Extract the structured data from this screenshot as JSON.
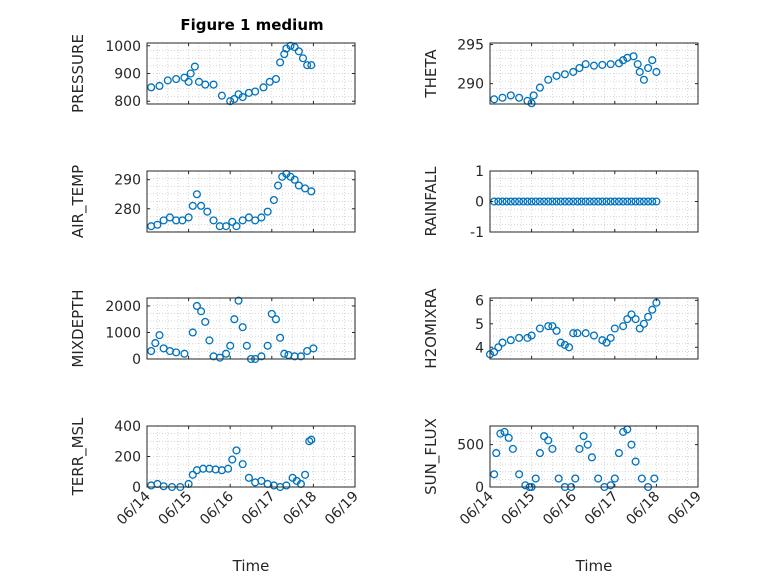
{
  "figure": {
    "title": "Figure 1 medium",
    "marker_color": "#0072bd",
    "axes_color": "#262626",
    "grid_color": "#c8c8c8"
  },
  "chart_data": [
    {
      "type": "scatter",
      "name": "pressure",
      "ylabel": "PRESSURE",
      "xlim": [
        "06/14",
        "06/19"
      ],
      "ylim": [
        790,
        1010
      ],
      "yticks": [
        800,
        900,
        1000
      ],
      "grid": true,
      "marker": "circle-open",
      "x": [
        14.1,
        14.3,
        14.5,
        14.7,
        14.9,
        15.0,
        15.05,
        15.15,
        15.25,
        15.4,
        15.6,
        15.8,
        16.0,
        16.1,
        16.2,
        16.3,
        16.45,
        16.6,
        16.8,
        16.95,
        17.1,
        17.2,
        17.3,
        17.35,
        17.45,
        17.55,
        17.65,
        17.75,
        17.85,
        17.95
      ],
      "y": [
        850,
        855,
        875,
        880,
        885,
        870,
        900,
        925,
        870,
        860,
        860,
        820,
        800,
        808,
        825,
        815,
        830,
        835,
        850,
        870,
        880,
        940,
        970,
        990,
        1000,
        995,
        980,
        955,
        930,
        930
      ]
    },
    {
      "type": "scatter",
      "name": "theta",
      "ylabel": "THETA",
      "xlim": [
        "06/14",
        "06/19"
      ],
      "ylim": [
        287.4,
        295.2
      ],
      "yticks": [
        290,
        295
      ],
      "grid": true,
      "marker": "circle-open",
      "x": [
        14.1,
        14.3,
        14.5,
        14.7,
        14.9,
        15.0,
        15.05,
        15.2,
        15.4,
        15.6,
        15.8,
        16.0,
        16.15,
        16.3,
        16.5,
        16.7,
        16.9,
        17.1,
        17.2,
        17.3,
        17.45,
        17.55,
        17.6,
        17.7,
        17.8,
        17.9,
        18.0
      ],
      "y": [
        288.0,
        288.2,
        288.5,
        288.2,
        287.8,
        287.5,
        288.5,
        289.5,
        290.5,
        291.0,
        291.2,
        291.5,
        292.0,
        292.5,
        292.3,
        292.4,
        292.5,
        292.6,
        293.0,
        293.3,
        293.5,
        292.5,
        291.5,
        290.5,
        292.0,
        293.0,
        291.5
      ]
    },
    {
      "type": "scatter",
      "name": "air_temp",
      "ylabel": "AIR_TEMP",
      "xlim": [
        "06/14",
        "06/19"
      ],
      "ylim": [
        272,
        293
      ],
      "yticks": [
        280,
        290
      ],
      "grid": true,
      "marker": "circle-open",
      "x": [
        14.1,
        14.25,
        14.4,
        14.55,
        14.7,
        14.85,
        15.0,
        15.1,
        15.2,
        15.3,
        15.45,
        15.6,
        15.75,
        15.9,
        16.05,
        16.15,
        16.3,
        16.45,
        16.6,
        16.75,
        16.9,
        17.05,
        17.15,
        17.25,
        17.35,
        17.45,
        17.55,
        17.65,
        17.8,
        17.95
      ],
      "y": [
        274,
        274.5,
        276,
        277,
        276,
        276,
        277,
        281,
        285,
        281,
        279,
        276,
        274,
        274,
        275.5,
        274,
        276,
        277,
        276,
        277,
        279,
        283,
        288,
        291,
        292,
        291,
        290,
        288,
        287,
        286
      ]
    },
    {
      "type": "scatter",
      "name": "rainfall",
      "ylabel": "RAINFALL",
      "xlim": [
        "06/14",
        "06/19"
      ],
      "ylim": [
        -1,
        1
      ],
      "yticks": [
        -1,
        0,
        1
      ],
      "grid": true,
      "marker": "circle-open",
      "x": [
        14.1,
        14.2,
        14.3,
        14.4,
        14.5,
        14.6,
        14.7,
        14.8,
        14.9,
        15.0,
        15.1,
        15.2,
        15.3,
        15.4,
        15.5,
        15.6,
        15.7,
        15.8,
        15.9,
        16.0,
        16.1,
        16.2,
        16.3,
        16.4,
        16.5,
        16.6,
        16.7,
        16.8,
        16.9,
        17.0,
        17.1,
        17.2,
        17.3,
        17.4,
        17.5,
        17.6,
        17.7,
        17.8,
        17.9,
        18.0
      ],
      "y": [
        0,
        0,
        0,
        0,
        0,
        0,
        0,
        0,
        0,
        0,
        0,
        0,
        0,
        0,
        0,
        0,
        0,
        0,
        0,
        0,
        0,
        0,
        0,
        0,
        0,
        0,
        0,
        0,
        0,
        0,
        0,
        0,
        0,
        0,
        0,
        0,
        0,
        0,
        0,
        0
      ]
    },
    {
      "type": "scatter",
      "name": "mixdepth",
      "ylabel": "MIXDEPTH",
      "xlim": [
        "06/14",
        "06/19"
      ],
      "ylim": [
        0,
        2300
      ],
      "yticks": [
        0,
        1000,
        2000
      ],
      "grid": true,
      "marker": "circle-open",
      "x": [
        14.1,
        14.2,
        14.3,
        14.4,
        14.55,
        14.7,
        14.9,
        15.1,
        15.2,
        15.3,
        15.4,
        15.5,
        15.6,
        15.75,
        15.9,
        16.0,
        16.1,
        16.2,
        16.3,
        16.4,
        16.5,
        16.6,
        16.75,
        16.9,
        17.0,
        17.1,
        17.2,
        17.3,
        17.4,
        17.55,
        17.7,
        17.85,
        18.0
      ],
      "y": [
        300,
        600,
        900,
        400,
        300,
        250,
        200,
        1000,
        2000,
        1800,
        1400,
        700,
        100,
        50,
        200,
        500,
        1500,
        2200,
        1200,
        500,
        0,
        0,
        100,
        500,
        1700,
        1500,
        800,
        200,
        150,
        100,
        100,
        300,
        400
      ]
    },
    {
      "type": "scatter",
      "name": "h2omixra",
      "ylabel": "H2OMIXRA",
      "xlim": [
        "06/14",
        "06/19"
      ],
      "ylim": [
        3.5,
        6.1
      ],
      "yticks": [
        4,
        5,
        6
      ],
      "grid": true,
      "marker": "circle-open",
      "x": [
        14.0,
        14.1,
        14.2,
        14.3,
        14.5,
        14.7,
        14.9,
        15.0,
        15.2,
        15.4,
        15.5,
        15.6,
        15.7,
        15.8,
        15.9,
        16.0,
        16.1,
        16.3,
        16.5,
        16.7,
        16.8,
        16.9,
        17.0,
        17.2,
        17.3,
        17.4,
        17.5,
        17.6,
        17.7,
        17.8,
        17.9,
        18.0
      ],
      "y": [
        3.7,
        3.8,
        4.0,
        4.2,
        4.3,
        4.4,
        4.4,
        4.5,
        4.8,
        4.9,
        4.9,
        4.7,
        4.2,
        4.1,
        4.0,
        4.6,
        4.6,
        4.6,
        4.5,
        4.3,
        4.2,
        4.4,
        4.8,
        4.9,
        5.2,
        5.4,
        5.2,
        4.8,
        5.0,
        5.3,
        5.6,
        5.9
      ]
    },
    {
      "type": "scatter",
      "name": "terr_msl",
      "ylabel": "TERR_MSL",
      "xlim": [
        "06/14",
        "06/19"
      ],
      "ylim": [
        0,
        400
      ],
      "yticks": [
        0,
        200,
        400
      ],
      "grid": true,
      "marker": "circle-open",
      "x": [
        14.1,
        14.25,
        14.4,
        14.6,
        14.8,
        15.0,
        15.1,
        15.2,
        15.35,
        15.5,
        15.65,
        15.8,
        15.95,
        16.05,
        16.15,
        16.3,
        16.45,
        16.6,
        16.75,
        16.9,
        17.05,
        17.2,
        17.35,
        17.5,
        17.6,
        17.7,
        17.8,
        17.9,
        17.95
      ],
      "y": [
        10,
        20,
        5,
        0,
        0,
        20,
        80,
        110,
        120,
        120,
        115,
        110,
        120,
        180,
        240,
        150,
        60,
        30,
        40,
        20,
        10,
        0,
        10,
        60,
        40,
        20,
        80,
        300,
        310
      ]
    },
    {
      "type": "scatter",
      "name": "sun_flux",
      "ylabel": "SUN_FLUX",
      "xlim": [
        "06/14",
        "06/19"
      ],
      "ylim": [
        0,
        720
      ],
      "yticks": [
        0,
        500
      ],
      "grid": true,
      "marker": "circle-open",
      "x": [
        14.1,
        14.15,
        14.25,
        14.35,
        14.45,
        14.55,
        14.7,
        14.85,
        14.95,
        15.0,
        15.1,
        15.2,
        15.3,
        15.4,
        15.5,
        15.65,
        15.8,
        15.95,
        16.05,
        16.15,
        16.25,
        16.35,
        16.45,
        16.6,
        16.75,
        16.9,
        17.0,
        17.1,
        17.2,
        17.3,
        17.4,
        17.5,
        17.65,
        17.8,
        17.95
      ],
      "y": [
        150,
        400,
        630,
        650,
        580,
        450,
        150,
        20,
        0,
        0,
        100,
        400,
        600,
        550,
        450,
        100,
        0,
        0,
        100,
        450,
        600,
        500,
        350,
        100,
        0,
        20,
        100,
        400,
        650,
        680,
        500,
        300,
        100,
        0,
        100
      ]
    }
  ],
  "axes": {
    "xticks": [
      "06/14",
      "06/15",
      "06/16",
      "06/17",
      "06/18",
      "06/19"
    ],
    "xlabel": "Time"
  }
}
